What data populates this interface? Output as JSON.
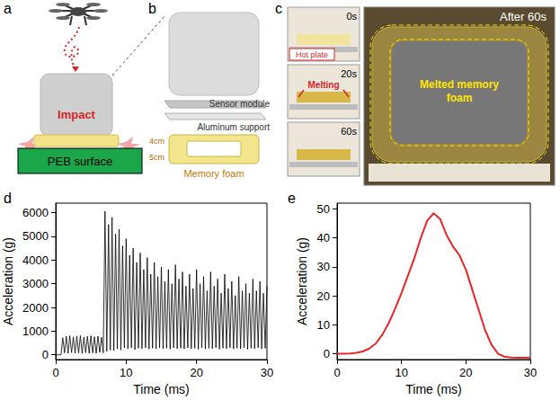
{
  "panels": {
    "a": {
      "letter": "a",
      "impact": "Impact",
      "surface": "PEB surface"
    },
    "b": {
      "letter": "b",
      "sensor": "Sensor module",
      "support": "Aluminum support",
      "foam": "Memory foam",
      "dims": [
        "4cm",
        "5cm"
      ]
    },
    "c": {
      "letter": "c",
      "times": [
        "0s",
        "20s",
        "60s"
      ],
      "hot_plate": "Hot plate",
      "melting": "Melting",
      "after": "After 60s",
      "melted": "Melted memory foam"
    }
  },
  "chart_data": [
    {
      "type": "line",
      "panel_label": "d",
      "x_label": "Time (ms)",
      "y_label": "Acceleration (g)",
      "xlim": [
        0,
        30
      ],
      "xticks": [
        0,
        10,
        20,
        30
      ],
      "ylim": [
        -200,
        6400
      ],
      "yticks": [
        0,
        1000,
        2000,
        3000,
        4000,
        5000,
        6000
      ],
      "grid": false,
      "color": "#000000",
      "x": [
        0,
        0.25,
        0.5,
        0.75,
        1,
        1.25,
        1.5,
        1.75,
        2,
        2.25,
        2.5,
        2.75,
        3,
        3.25,
        3.5,
        3.75,
        4,
        4.25,
        4.5,
        4.75,
        5,
        5.25,
        5.5,
        5.75,
        6,
        6.25,
        6.5,
        6.75,
        7,
        7.25,
        7.5,
        7.75,
        8,
        8.25,
        8.5,
        8.75,
        9,
        9.25,
        9.5,
        9.75,
        10,
        10.25,
        10.5,
        10.75,
        11,
        11.25,
        11.5,
        11.75,
        12,
        12.25,
        12.5,
        12.75,
        13,
        13.25,
        13.5,
        13.75,
        14,
        14.25,
        14.5,
        14.75,
        15,
        15.25,
        15.5,
        15.75,
        16,
        16.25,
        16.5,
        16.75,
        17,
        17.25,
        17.5,
        17.75,
        18,
        18.25,
        18.5,
        18.75,
        19,
        19.25,
        19.5,
        19.75,
        20,
        20.25,
        20.5,
        20.75,
        21,
        21.25,
        21.5,
        21.75,
        22,
        22.25,
        22.5,
        22.75,
        23,
        23.25,
        23.5,
        23.75,
        24,
        24.25,
        24.5,
        24.75,
        25,
        25.25,
        25.5,
        25.75,
        26,
        26.25,
        26.5,
        26.75,
        27,
        27.25,
        27.5,
        27.75,
        28,
        28.25,
        28.5,
        28.75,
        29,
        29.25,
        29.5,
        29.75,
        30
      ],
      "values": [
        0,
        0,
        0,
        0,
        720,
        80,
        780,
        60,
        800,
        90,
        760,
        70,
        790,
        80,
        810,
        60,
        750,
        90,
        780,
        70,
        800,
        80,
        760,
        60,
        790,
        100,
        740,
        80,
        6050,
        150,
        5500,
        200,
        5800,
        180,
        5100,
        250,
        5300,
        200,
        4600,
        300,
        4900,
        250,
        4200,
        300,
        4500,
        220,
        3900,
        280,
        4300,
        260,
        3600,
        300,
        4100,
        240,
        3400,
        280,
        3900,
        250,
        3300,
        300,
        3700,
        260,
        3100,
        280,
        3600,
        240,
        3000,
        300,
        3800,
        260,
        3200,
        280,
        3500,
        250,
        2900,
        300,
        3400,
        260,
        2800,
        280,
        3600,
        240,
        3000,
        300,
        3300,
        250,
        2700,
        280,
        3500,
        260,
        2900,
        300,
        3200,
        240,
        2600,
        280,
        3400,
        260,
        2800,
        300,
        3100,
        250,
        2500,
        280,
        3300,
        260,
        2700,
        300,
        3000,
        240,
        2600,
        280,
        3200,
        260,
        2700,
        300,
        3100,
        250,
        2600,
        280,
        2900
      ]
    },
    {
      "type": "line",
      "panel_label": "e",
      "x_label": "Time (ms)",
      "y_label": "Acceleration (g)",
      "xlim": [
        0,
        30
      ],
      "xticks": [
        0,
        10,
        20,
        30
      ],
      "ylim": [
        -2,
        52
      ],
      "yticks": [
        0,
        10,
        20,
        30,
        40,
        50
      ],
      "grid": false,
      "color": "#e8262a",
      "x": [
        0,
        1,
        2,
        3,
        4,
        5,
        6,
        7,
        8,
        9,
        10,
        11,
        12,
        13,
        14,
        15,
        16,
        17,
        18,
        19,
        20,
        21,
        22,
        23,
        24,
        25,
        26,
        27,
        28,
        29,
        30
      ],
      "values": [
        0,
        0,
        0.1,
        0.3,
        0.8,
        1.8,
        3.5,
        6.5,
        10.5,
        15.5,
        21,
        27,
        33,
        40,
        46,
        48.5,
        46.5,
        41,
        37,
        34,
        29,
        22,
        15,
        8,
        3,
        0,
        -1,
        -1.3,
        -1.4,
        -1.4,
        -1.4
      ]
    }
  ]
}
